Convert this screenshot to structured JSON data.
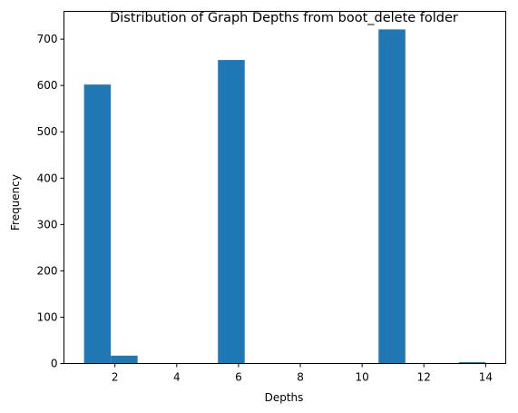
{
  "chart_data": {
    "type": "bar",
    "title": "Distribution of Graph Depths from boot_delete folder",
    "xlabel": "Depths",
    "ylabel": "Frequency",
    "xlim": [
      0.35,
      14.65
    ],
    "ylim": [
      0,
      760
    ],
    "xticks": [
      2,
      4,
      6,
      8,
      10,
      12,
      14
    ],
    "yticks": [
      0,
      100,
      200,
      300,
      400,
      500,
      600,
      700
    ],
    "grid": false,
    "bar_color": "#1f77b4",
    "bins": [
      {
        "start": 1.0,
        "end": 1.8667,
        "value": 602
      },
      {
        "start": 1.8667,
        "end": 2.7333,
        "value": 17
      },
      {
        "start": 2.7333,
        "end": 3.6,
        "value": 0
      },
      {
        "start": 3.6,
        "end": 4.4667,
        "value": 0
      },
      {
        "start": 4.4667,
        "end": 5.3333,
        "value": 0
      },
      {
        "start": 5.3333,
        "end": 6.2,
        "value": 655
      },
      {
        "start": 6.2,
        "end": 7.0667,
        "value": 0
      },
      {
        "start": 7.0667,
        "end": 7.9333,
        "value": 0
      },
      {
        "start": 7.9333,
        "end": 8.8,
        "value": 0
      },
      {
        "start": 8.8,
        "end": 9.6667,
        "value": 0
      },
      {
        "start": 9.6667,
        "end": 10.5333,
        "value": 0
      },
      {
        "start": 10.5333,
        "end": 11.4,
        "value": 721
      },
      {
        "start": 11.4,
        "end": 12.2667,
        "value": 0
      },
      {
        "start": 12.2667,
        "end": 13.1333,
        "value": 0
      },
      {
        "start": 13.1333,
        "end": 14.0,
        "value": 3
      }
    ]
  }
}
